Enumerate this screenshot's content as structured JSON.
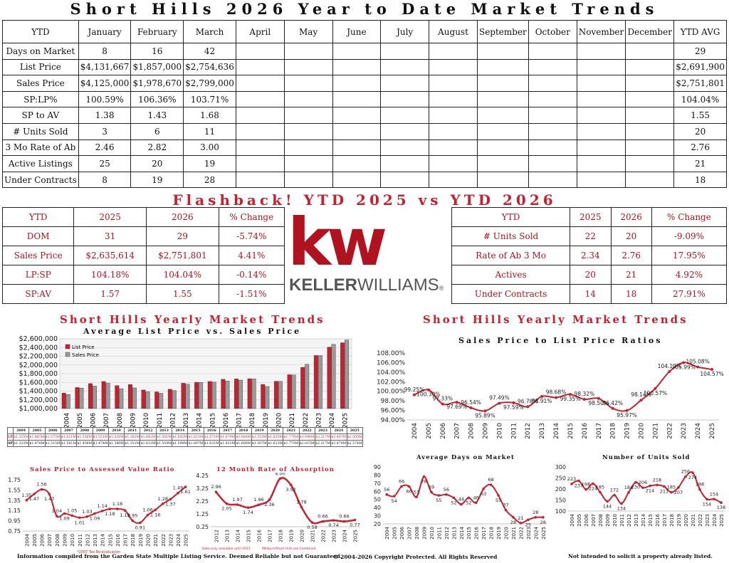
{
  "title": "Short Hills 2026 Year to Date Market Trends",
  "main_table": {
    "corner": "YTD",
    "months": [
      "January",
      "February",
      "March",
      "April",
      "May",
      "June",
      "July",
      "August",
      "September",
      "October",
      "November",
      "December"
    ],
    "avg_label": "YTD AVG",
    "rows": [
      {
        "label": "Days on Market",
        "values": [
          "8",
          "16",
          "42"
        ],
        "avg": "29"
      },
      {
        "label": "List Price",
        "values": [
          "$4,131,667",
          "$1,857,000",
          "$2,754,636"
        ],
        "avg": "$2,691,900"
      },
      {
        "label": "Sales Price",
        "values": [
          "$4,125,000",
          "$1,978,670",
          "$2,799,000"
        ],
        "avg": "$2,751,801"
      },
      {
        "label": "SP:LP%",
        "values": [
          "100.59%",
          "106.36%",
          "103.71%"
        ],
        "avg": "104.04%"
      },
      {
        "label": "SP to AV",
        "values": [
          "1.38",
          "1.43",
          "1.68"
        ],
        "avg": "1.55"
      },
      {
        "label": "# Units Sold",
        "values": [
          "3",
          "6",
          "11"
        ],
        "avg": "20"
      },
      {
        "label": "3 Mo Rate of Ab",
        "values": [
          "2.46",
          "2.82",
          "3.00"
        ],
        "avg": "2.76"
      },
      {
        "label": "Active Listings",
        "values": [
          "25",
          "20",
          "19"
        ],
        "avg": "21"
      },
      {
        "label": "Under Contracts",
        "values": [
          "8",
          "19",
          "28"
        ],
        "avg": "18"
      }
    ]
  },
  "flashback": {
    "title": "Flashback!   YTD 2025 vs YTD 2026",
    "headers": [
      "YTD",
      "2025",
      "2026",
      "% Change"
    ],
    "left_rows": [
      [
        "DOM",
        "31",
        "29",
        "-5.74%"
      ],
      [
        "Sales Price",
        "$2,635,614",
        "$2,751,801",
        "4.41%"
      ],
      [
        "LP:SP",
        "104.18%",
        "104.04%",
        "-0.14%"
      ],
      [
        "SP:AV",
        "1.57",
        "1.55",
        "-1.51%"
      ]
    ],
    "right_rows": [
      [
        "# Units Sold",
        "22",
        "20",
        "-9.09%"
      ],
      [
        "Rate of Ab 3 Mo",
        "2.34",
        "2.76",
        "17.95%"
      ],
      [
        "Actives",
        "20",
        "21",
        "4.92%"
      ],
      [
        "Under Contracts",
        "14",
        "18",
        "27.91%"
      ]
    ]
  },
  "logo": {
    "mark": "kw",
    "word_bold": "KELLER",
    "word_light": "WILLIAMS",
    "reg": "®"
  },
  "section_left_title": "Short Hills Yearly Market Trends",
  "section_right_title": "Short Hills Yearly Market Trends",
  "colors": {
    "accent": "#c8202f",
    "bar_list": "#c8202f",
    "bar_sales": "#9a9a9a",
    "line": "#c8202f"
  },
  "chart_data": [
    {
      "type": "bar",
      "title": "Average List Price vs. Sales Price",
      "categories": [
        "2004",
        "2005",
        "2006",
        "2007",
        "2008",
        "2009",
        "2010",
        "2011",
        "2012",
        "2013",
        "2014",
        "2015",
        "2016",
        "2017",
        "2018",
        "2019",
        "2020",
        "2021",
        "2022",
        "2023",
        "2024",
        "2025"
      ],
      "series": [
        {
          "name": "List Price",
          "values": [
            1.355,
            1.483,
            1.573,
            1.621,
            1.526,
            1.551,
            1.426,
            1.383,
            1.442,
            1.581,
            1.602,
            1.621,
            1.671,
            1.679,
            1.684,
            1.553,
            1.625,
            1.776,
            1.946,
            2.217,
            2.407,
            2.509
          ]
        },
        {
          "name": "Sales Price",
          "values": [
            1.323,
            1.47,
            1.515,
            1.581,
            1.456,
            1.474,
            1.386,
            1.351,
            1.412,
            1.559,
            1.599,
            1.607,
            1.631,
            1.652,
            1.68,
            1.507,
            1.623,
            1.77,
            2.015,
            2.217,
            2.474,
            2.574
          ]
        }
      ],
      "yticks": [
        "$1,000,000",
        "$1,200,000",
        "$1,400,000",
        "$1,600,000",
        "$1,800,000",
        "$2,000,000",
        "$2,200,000",
        "$2,400,000",
        "$2,600,000"
      ],
      "ylim": [
        1.0,
        2.6
      ],
      "legend": "top-left"
    },
    {
      "type": "line",
      "title": "Sales Price to List Price Ratios",
      "x": [
        "2004",
        "2005",
        "2006",
        "2007",
        "2008",
        "2009",
        "2010",
        "2011",
        "2012",
        "2013",
        "2014",
        "2015",
        "2016",
        "2017",
        "2018",
        "2019",
        "2020",
        "2021",
        "2022",
        "2023",
        "2024",
        "2025"
      ],
      "values": [
        99.25,
        100.3,
        97.33,
        97.69,
        96.54,
        95.89,
        97.49,
        97.59,
        96.78,
        98.91,
        98.68,
        99.35,
        98.32,
        98.5,
        96.42,
        95.97,
        98.14,
        100.57,
        104.12,
        105.99,
        105.08,
        104.57
      ],
      "labels": [
        "99.25%",
        "100.30%",
        "97.33%",
        "97.69%",
        "96.54%",
        "95.89%",
        "97.49%",
        "97.59%",
        "96.78%",
        "98.91%",
        "98.68%",
        "99.35%",
        "98.32%",
        "98.50%",
        "96.42%",
        "95.97%",
        "98.14%",
        "100.57%",
        "104.12%",
        "105.99%",
        "105.08%",
        "104.57%"
      ],
      "yticks": [
        "94.00%",
        "96.00%",
        "98.00%",
        "100.00%",
        "102.00%",
        "104.00%",
        "106.00%",
        "108.00%"
      ],
      "ylim": [
        94,
        108
      ]
    },
    {
      "type": "line",
      "title": "Sales Price to Assessed Value Ratio",
      "x": [
        "2004",
        "2005",
        "2006",
        "2007",
        "2008",
        "2009",
        "2010",
        "2011",
        "2012",
        "2013",
        "2014",
        "2015",
        "2016",
        "2017",
        "2018",
        "2019",
        "2020",
        "2021",
        "2022",
        "2023",
        "2024",
        "2025"
      ],
      "values": [
        1.35,
        1.47,
        1.56,
        1.47,
        1.04,
        1.09,
        1.05,
        1.01,
        1.03,
        1.09,
        1.14,
        1.18,
        1.18,
        1.15,
        0.95,
        0.91,
        1.06,
        1.16,
        1.28,
        1.37,
        1.49,
        1.61
      ],
      "labels": [
        "1.35",
        "1.47",
        "1.56",
        "1.47",
        "1.04",
        "1.09",
        "1.05",
        "1.01",
        "1.03",
        "1.09",
        "1.14",
        "1.18",
        "1.18",
        "1.15",
        "0.95",
        "0.91",
        "1.06",
        "1.16",
        "1.28",
        "1.37",
        "1.49",
        "1.61"
      ],
      "yticks": [
        "0.75",
        "0.95",
        "1.15",
        "1.35",
        "1.55",
        "1.75"
      ],
      "ylim": [
        0.75,
        1.75
      ],
      "note": "*2007 Tax Re-evaluation"
    },
    {
      "type": "line",
      "title": "12 Month Rate of Absorption",
      "x": [
        "2012",
        "2013",
        "2014",
        "2015",
        "2016",
        "2017",
        "2018",
        "2019",
        "2020",
        "2021",
        "2022",
        "2023",
        "2024",
        "2025"
      ],
      "values": [
        2.96,
        2.05,
        1.97,
        1.74,
        1.96,
        2.36,
        4.0,
        3.52,
        1.78,
        0.58,
        0.66,
        0.74,
        0.66,
        0.77
      ],
      "labels": [
        "2.96",
        "2.05",
        "1.97",
        "1.74",
        "1.96",
        "2.36",
        "4.00",
        "3.52",
        "1.78",
        "0.58",
        "0.66",
        "0.74",
        "0.66",
        "0.77"
      ],
      "yticks": [
        "0.25",
        "1.25",
        "2.25",
        "3.25",
        "4.25"
      ],
      "ylim": [
        0.25,
        4.25
      ],
      "note_left": "Data only available until 2013",
      "note_right": "Millburn/Short Hills are Combined"
    },
    {
      "type": "line",
      "title": "Average Days on Market",
      "x": [
        "2004",
        "2005",
        "2006",
        "2007",
        "2008",
        "2009",
        "2010",
        "2011",
        "2012",
        "2013",
        "2014",
        "2015",
        "2016",
        "2017",
        "2018",
        "2019",
        "2020",
        "2021",
        "2022",
        "2023",
        "2024",
        "2025"
      ],
      "values": [
        56,
        54,
        66,
        66,
        53,
        78,
        59,
        55,
        56,
        52,
        44,
        52,
        46,
        63,
        68,
        55,
        37,
        28,
        21,
        25,
        28,
        28
      ],
      "labels": [
        "56",
        "54",
        "66",
        "66",
        "53",
        "78",
        "59",
        "55",
        "56",
        "52",
        "44",
        "52",
        "46",
        "63",
        "68",
        "55",
        "37",
        "28",
        "21",
        "25",
        "28",
        "28"
      ],
      "yticks": [
        "20",
        "30",
        "40",
        "50",
        "60",
        "70",
        "80",
        "90"
      ],
      "ylim": [
        20,
        90
      ]
    },
    {
      "type": "line",
      "title": "Number of Units Sold",
      "x": [
        "2004",
        "2005",
        "2006",
        "2007",
        "2008",
        "2009",
        "2010",
        "2011",
        "2012",
        "2013",
        "2014",
        "2015",
        "2016",
        "2017",
        "2018",
        "2019",
        "2020",
        "2021",
        "2022",
        "2023",
        "2024",
        "2025"
      ],
      "values": [
        223,
        237,
        198,
        224,
        185,
        144,
        172,
        134,
        184,
        230,
        206,
        214,
        218,
        211,
        185,
        207,
        256,
        274,
        198,
        154,
        154,
        138
      ],
      "labels": [
        "223",
        "237",
        "198",
        "224",
        "185",
        "144",
        "172",
        "134",
        "184",
        "230",
        "206",
        "214",
        "218",
        "211",
        "185",
        "207",
        "256",
        "274",
        "198",
        "154",
        "154",
        "138"
      ],
      "yticks": [
        "100",
        "150",
        "200",
        "250",
        "300"
      ],
      "ylim": [
        100,
        300
      ]
    }
  ],
  "lp_table": {
    "years": [
      "2004",
      "2005",
      "2006",
      "2007",
      "2008",
      "2009",
      "2010",
      "2011",
      "2012",
      "2013",
      "2014",
      "2015",
      "2016",
      "2017",
      "2018",
      "2019",
      "2020",
      "2021",
      "2022",
      "2023",
      "2024",
      "2025"
    ],
    "lp_label": "LP",
    "sp_label": "SP",
    "lp": [
      "$1.355M",
      "$1.483M",
      "$1.573M",
      "$1.621M",
      "$1.526M",
      "$1.551M",
      "$1.426M",
      "$1.383M",
      "$1.442M",
      "$1.581M",
      "$1.602M",
      "$1.621M",
      "$1.671M",
      "$1.679M",
      "$1.684M",
      "$1.553M",
      "$1.625M",
      "$1.776M",
      "$1.946M",
      "$2.217M",
      "$2.407M",
      "$2.509M"
    ],
    "sp": [
      "$1.323M",
      "$1.470M",
      "$1.515M",
      "$1.581M",
      "$1.456M",
      "$1.474M",
      "$1.386M",
      "$1.351M",
      "$1.412M",
      "$1.559M",
      "$1.599M",
      "$1.607M",
      "$1.631M",
      "$1.652M",
      "$1.680M",
      "$1.507M",
      "$1.623M",
      "$1.770M",
      "$2.015M",
      "$2.217M",
      "$2.474M",
      "$2.574M"
    ]
  },
  "footer": {
    "left": "Information compiled from the Garden State Multiple Listing Service.  Deemed Reliable but not Guaranteed.",
    "center": "© 2004-2026 Copyright Protected.  All Rights Reserved",
    "right": "Not intended to solicit a property already listed."
  }
}
